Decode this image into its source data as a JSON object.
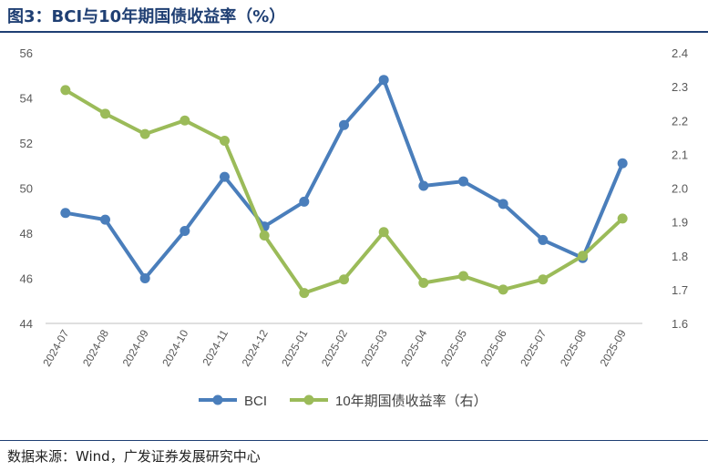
{
  "header": {
    "title": "图3：BCI与10年期国债收益率（%）"
  },
  "footer": {
    "source": "数据来源：Wind，广发证券发展研究中心"
  },
  "chart_data": {
    "type": "line",
    "categories": [
      "2024-07",
      "2024-08",
      "2024-09",
      "2024-10",
      "2024-11",
      "2024-12",
      "2025-01",
      "2025-02",
      "2025-03",
      "2025-04",
      "2025-05",
      "2025-06",
      "2025-07",
      "2025-08",
      "2025-09"
    ],
    "series": [
      {
        "name": "BCI",
        "axis": "left",
        "color": "#4a7ebb",
        "values": [
          48.9,
          48.6,
          46.0,
          48.1,
          50.5,
          48.3,
          49.4,
          52.8,
          54.8,
          50.1,
          50.3,
          49.3,
          47.7,
          46.9,
          51.1
        ]
      },
      {
        "name": "10年期国债收益率（右）",
        "axis": "right",
        "color": "#9bbb59",
        "values": [
          2.29,
          2.22,
          2.16,
          2.2,
          2.14,
          1.86,
          1.69,
          1.73,
          1.87,
          1.72,
          1.74,
          1.7,
          1.73,
          1.8,
          1.91
        ]
      }
    ],
    "left_axis": {
      "ylim": [
        44,
        56
      ],
      "ticks": [
        44,
        46,
        48,
        50,
        52,
        54,
        56
      ]
    },
    "right_axis": {
      "ylim": [
        1.6,
        2.4
      ],
      "ticks": [
        "1.6",
        "1.7",
        "1.8",
        "1.9",
        "2.0",
        "2.1",
        "2.2",
        "2.3",
        "2.4"
      ]
    },
    "grid": false,
    "legend_position": "bottom"
  }
}
